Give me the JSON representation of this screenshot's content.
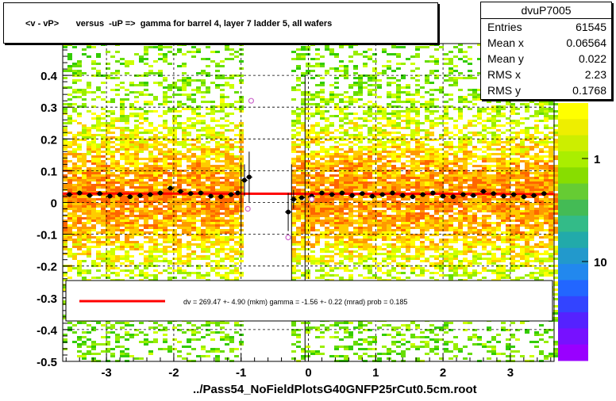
{
  "title": "<v - vP>       versus  -uP =>  gamma for barrel 4, layer 7 ladder 5, all wafers",
  "stats": {
    "name": "dvuP7005",
    "rows": [
      {
        "key": "Entries",
        "value": "61545"
      },
      {
        "key": "Mean x",
        "value": "0.06564"
      },
      {
        "key": "Mean y",
        "value": "0.022"
      },
      {
        "key": "RMS x",
        "value": "2.23"
      },
      {
        "key": "RMS y",
        "value": "0.1768"
      }
    ]
  },
  "legend": {
    "fit_text": "dv =  269.47 +-  4.90 (mkm) gamma =   -1.56 +-  0.22 (mrad) prob = 0.185"
  },
  "footer": "../Pass54_NoFieldPlotsG40GNFP25rCut0.5cm.root",
  "colors": {
    "fit_line": "#ff0000",
    "profile_points": "#000000",
    "outlier_points": "#cc66cc"
  },
  "chart_data": {
    "type": "heatmap",
    "x_range": [
      -3.65,
      3.65
    ],
    "y_range": [
      -0.5,
      0.5
    ],
    "x_ticks": [
      "-3",
      "-2",
      "-1",
      "0",
      "1",
      "2",
      "3"
    ],
    "y_ticks": [
      "-0.5",
      "-0.4",
      "-0.3",
      "-0.2",
      "-0.1",
      "0",
      "0.1",
      "0.2",
      "0.3",
      "0.4"
    ],
    "grid": true,
    "palette_labels": [
      "1",
      "10"
    ],
    "palette_partial_label": "0",
    "empty_x_bands": [
      [
        -0.95,
        -0.25
      ]
    ],
    "fit": {
      "x0": -3.65,
      "x1": 3.65,
      "y0": 0.028,
      "y1": 0.027
    },
    "profile_points": [
      {
        "x": -3.55,
        "y": 0.025
      },
      {
        "x": -3.4,
        "y": 0.03
      },
      {
        "x": -3.25,
        "y": 0.022
      },
      {
        "x": -3.1,
        "y": 0.028
      },
      {
        "x": -2.95,
        "y": 0.02
      },
      {
        "x": -2.8,
        "y": 0.025
      },
      {
        "x": -2.65,
        "y": 0.018
      },
      {
        "x": -2.5,
        "y": 0.022
      },
      {
        "x": -2.35,
        "y": 0.025
      },
      {
        "x": -2.2,
        "y": 0.03
      },
      {
        "x": -2.05,
        "y": 0.045
      },
      {
        "x": -1.9,
        "y": 0.035
      },
      {
        "x": -1.75,
        "y": 0.028
      },
      {
        "x": -1.6,
        "y": 0.03
      },
      {
        "x": -1.45,
        "y": 0.02
      },
      {
        "x": -1.3,
        "y": 0.018
      },
      {
        "x": -1.15,
        "y": 0.025
      },
      {
        "x": -1.05,
        "y": 0.03
      },
      {
        "x": -0.95,
        "y": 0.07,
        "err": 0.05
      },
      {
        "x": -0.88,
        "y": 0.08,
        "err": 0.08
      },
      {
        "x": -0.3,
        "y": -0.03,
        "err": 0.06
      },
      {
        "x": -0.22,
        "y": 0.01,
        "err": 0.03
      },
      {
        "x": -0.1,
        "y": 0.015
      },
      {
        "x": 0.05,
        "y": 0.02
      },
      {
        "x": 0.2,
        "y": 0.03
      },
      {
        "x": 0.35,
        "y": 0.025
      },
      {
        "x": 0.5,
        "y": 0.03
      },
      {
        "x": 0.65,
        "y": 0.022
      },
      {
        "x": 0.8,
        "y": 0.028
      },
      {
        "x": 0.95,
        "y": 0.02
      },
      {
        "x": 1.1,
        "y": 0.025
      },
      {
        "x": 1.25,
        "y": 0.03
      },
      {
        "x": 1.4,
        "y": 0.022
      },
      {
        "x": 1.55,
        "y": 0.018
      },
      {
        "x": 1.7,
        "y": 0.025
      },
      {
        "x": 1.85,
        "y": 0.03
      },
      {
        "x": 2.0,
        "y": 0.02
      },
      {
        "x": 2.15,
        "y": 0.018
      },
      {
        "x": 2.3,
        "y": 0.025
      },
      {
        "x": 2.45,
        "y": 0.022
      },
      {
        "x": 2.6,
        "y": 0.035
      },
      {
        "x": 2.75,
        "y": 0.028
      },
      {
        "x": 2.9,
        "y": 0.02
      },
      {
        "x": 3.05,
        "y": 0.025
      },
      {
        "x": 3.2,
        "y": 0.018
      },
      {
        "x": 3.35,
        "y": 0.022
      },
      {
        "x": 3.5,
        "y": 0.028
      }
    ],
    "outlier_points": [
      {
        "x": -0.85,
        "y": 0.32
      },
      {
        "x": -0.9,
        "y": -0.02
      },
      {
        "x": -0.3,
        "y": -0.11
      },
      {
        "x": 0.05,
        "y": 0.01
      }
    ]
  }
}
